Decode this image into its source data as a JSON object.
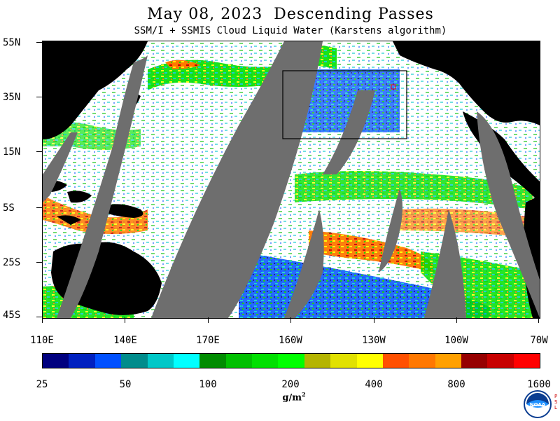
{
  "header": {
    "title": "May 08, 2023  Descending Passes",
    "subtitle": "SSM/I + SSMIS Cloud Liquid Water (Karstens algorithm)"
  },
  "map": {
    "lat_labels": [
      "55N",
      "35N",
      "15N",
      "5S",
      "25S",
      "45S"
    ],
    "lon_labels": [
      "110E",
      "140E",
      "170E",
      "160W",
      "130W",
      "100W",
      "70W"
    ],
    "colors": {
      "ocean_clear": "#ffffff",
      "land": "#000000",
      "missing_swath_gap": "#6e6e6e",
      "highlight_box": "#000000",
      "marker": "#ff0000"
    }
  },
  "colorbar": {
    "colors": [
      "#00007f",
      "#0020c0",
      "#0050ff",
      "#008c8c",
      "#00c8c8",
      "#00ffff",
      "#008c00",
      "#00c000",
      "#00e000",
      "#00ff00",
      "#b4b400",
      "#e1e100",
      "#ffff00",
      "#ff5000",
      "#ff7800",
      "#ffa000",
      "#960000",
      "#c80000",
      "#ff0000"
    ],
    "tick_labels": [
      "25",
      "50",
      "100",
      "200",
      "400",
      "800",
      "1600"
    ],
    "units_text": "g/m",
    "units_sup": "2"
  },
  "logo": {
    "icon": "noaa-logo-icon",
    "text": "NOAA",
    "side_text": "PSL"
  }
}
